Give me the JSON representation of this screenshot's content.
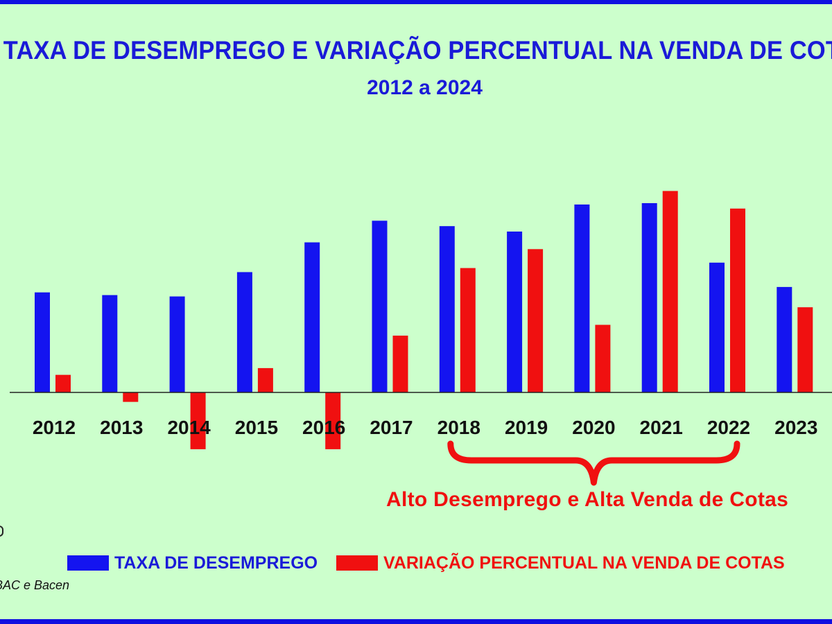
{
  "colors": {
    "background": "#ccffcc",
    "frame": "#1010e0",
    "blue_series": "#1414f0",
    "red_series": "#f01010",
    "title": "#1a1ad8"
  },
  "title": "TAXA DE DESEMPREGO E VARIAÇÃO PERCENTUAL NA VENDA DE COTAS",
  "subtitle": "2012 a 2024",
  "annotation": "Alto Desemprego e Alta Venda de Cotas",
  "legend": {
    "series1": "TAXA DE DESEMPREGO",
    "series2": "VARIAÇÃO PERCENTUAL NA VENDA DE COTAS"
  },
  "source": "BAC e Bacen",
  "chart_data": {
    "type": "bar",
    "categories": [
      "2012",
      "2013",
      "2014",
      "2015",
      "2016",
      "2017",
      "2018",
      "2019",
      "2020",
      "2021",
      "2022",
      "2023"
    ],
    "series": [
      {
        "name": "TAXA DE DESEMPREGO",
        "color": "#1414f0",
        "values": [
          7.4,
          7.2,
          7.1,
          8.9,
          11.1,
          12.7,
          12.3,
          11.9,
          13.9,
          14.0,
          9.6,
          7.8
        ]
      },
      {
        "name": "VARIAÇÃO PERCENTUAL NA VENDA DE COTAS",
        "color": "#f01010",
        "values": [
          1.3,
          -0.7,
          -4.2,
          1.8,
          -4.2,
          4.2,
          9.2,
          10.6,
          5.0,
          14.9,
          13.6,
          6.3
        ]
      }
    ],
    "ylim": [
      -5,
      15
    ],
    "axis_visible": false,
    "grid": false,
    "legend_position": "bottom",
    "annotation": "Alto Desemprego e Alta Venda de Cotas",
    "annotation_span": [
      "2018",
      "2022"
    ]
  }
}
